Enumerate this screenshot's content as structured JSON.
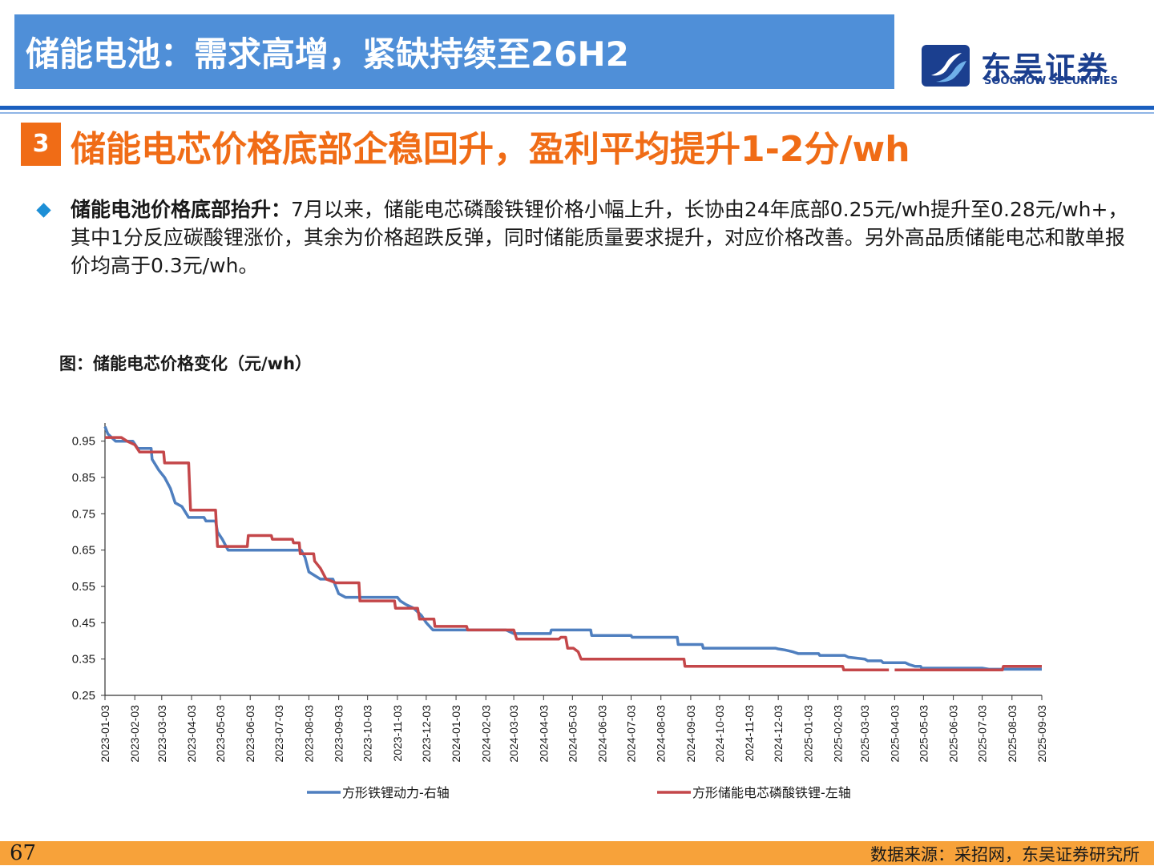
{
  "header": {
    "title": "储能电池：需求高增，紧缺持续至26H2",
    "brand_cn": "东吴证券",
    "brand_en": "SOOCHOW SECURITIES"
  },
  "section": {
    "number": "3",
    "title": "储能电芯价格底部企稳回升，盈利平均提升1-2分/wh"
  },
  "bullet": {
    "lead": "储能电池价格底部抬升：",
    "text": "7月以来，储能电芯磷酸铁锂价格小幅上升，长协由24年底部0.25元/wh提升至0.28元/wh+，其中1分反应碳酸锂涨价，其余为价格超跌反弹，同时储能质量要求提升，对应价格改善。另外高品质储能电芯和散单报价均高于0.3元/wh。"
  },
  "chart_title": "图：储能电芯价格变化（元/wh）",
  "chart_data": {
    "type": "line",
    "title": "图：储能电芯价格变化（元/wh）",
    "xlabel": "",
    "ylabel": "",
    "x_ticks": [
      "2023-01-03",
      "2023-02-03",
      "2023-03-03",
      "2023-04-03",
      "2023-05-03",
      "2023-06-03",
      "2023-07-03",
      "2023-08-03",
      "2023-09-03",
      "2023-10-03",
      "2023-11-03",
      "2023-12-03",
      "2024-01-03",
      "2024-02-03",
      "2024-03-03",
      "2024-04-03",
      "2024-05-03",
      "2024-06-03",
      "2024-07-03",
      "2024-08-03",
      "2024-09-03",
      "2024-10-03",
      "2024-11-03",
      "2024-12-03",
      "2025-01-03",
      "2025-02-03",
      "2025-03-03",
      "2025-04-03",
      "2025-05-03",
      "2025-06-03",
      "2025-07-03",
      "2025-08-03",
      "2025-09-03"
    ],
    "y_ticks": [
      0.25,
      0.35,
      0.45,
      0.55,
      0.65,
      0.75,
      0.85,
      0.95
    ],
    "ylim": [
      0.25,
      1.0
    ],
    "grid": false,
    "legend_position": "bottom",
    "series": [
      {
        "name": "方形铁锂动力-右轴",
        "color": "#4f7fbf",
        "points": [
          [
            "2023-01-03",
            0.99
          ],
          [
            "2023-01-06",
            0.97
          ],
          [
            "2023-01-14",
            0.95
          ],
          [
            "2023-02-01",
            0.95
          ],
          [
            "2023-02-06",
            0.93
          ],
          [
            "2023-02-20",
            0.93
          ],
          [
            "2023-02-21",
            0.9
          ],
          [
            "2023-02-28",
            0.87
          ],
          [
            "2023-03-06",
            0.85
          ],
          [
            "2023-03-12",
            0.82
          ],
          [
            "2023-03-17",
            0.78
          ],
          [
            "2023-03-24",
            0.77
          ],
          [
            "2023-03-31",
            0.74
          ],
          [
            "2023-04-16",
            0.74
          ],
          [
            "2023-04-18",
            0.73
          ],
          [
            "2023-04-28",
            0.73
          ],
          [
            "2023-04-30",
            0.7
          ],
          [
            "2023-05-05",
            0.68
          ],
          [
            "2023-05-11",
            0.65
          ],
          [
            "2023-07-26",
            0.65
          ],
          [
            "2023-07-30",
            0.63
          ],
          [
            "2023-08-03",
            0.59
          ],
          [
            "2023-08-09",
            0.58
          ],
          [
            "2023-08-15",
            0.57
          ],
          [
            "2023-08-28",
            0.57
          ],
          [
            "2023-09-03",
            0.53
          ],
          [
            "2023-09-10",
            0.52
          ],
          [
            "2023-11-03",
            0.52
          ],
          [
            "2023-11-06",
            0.51
          ],
          [
            "2023-11-12",
            0.5
          ],
          [
            "2023-11-20",
            0.49
          ],
          [
            "2023-11-28",
            0.47
          ],
          [
            "2023-12-03",
            0.45
          ],
          [
            "2023-12-10",
            0.43
          ],
          [
            "2024-02-24",
            0.43
          ],
          [
            "2024-03-03",
            0.42
          ],
          [
            "2024-04-10",
            0.42
          ],
          [
            "2024-04-11",
            0.43
          ],
          [
            "2024-05-22",
            0.43
          ],
          [
            "2024-05-23",
            0.415
          ],
          [
            "2024-07-03",
            0.415
          ],
          [
            "2024-07-04",
            0.41
          ],
          [
            "2024-08-20",
            0.41
          ],
          [
            "2024-08-21",
            0.39
          ],
          [
            "2024-09-15",
            0.39
          ],
          [
            "2024-09-16",
            0.38
          ],
          [
            "2024-11-30",
            0.38
          ],
          [
            "2024-12-03",
            0.378
          ],
          [
            "2024-12-10",
            0.375
          ],
          [
            "2024-12-18",
            0.37
          ],
          [
            "2024-12-24",
            0.365
          ],
          [
            "2025-01-14",
            0.365
          ],
          [
            "2025-01-15",
            0.36
          ],
          [
            "2025-02-10",
            0.36
          ],
          [
            "2025-02-14",
            0.355
          ],
          [
            "2025-03-03",
            0.35
          ],
          [
            "2025-03-06",
            0.345
          ],
          [
            "2025-03-20",
            0.345
          ],
          [
            "2025-03-22",
            0.34
          ],
          [
            "2025-04-14",
            0.34
          ],
          [
            "2025-04-18",
            0.335
          ],
          [
            "2025-04-24",
            0.33
          ],
          [
            "2025-04-30",
            0.33
          ],
          [
            "2025-05-01",
            0.325
          ],
          [
            "2025-07-03",
            0.325
          ],
          [
            "2025-07-10",
            0.322
          ],
          [
            "2025-09-03",
            0.322
          ]
        ]
      },
      {
        "name": "方形储能电芯磷酸铁锂-左轴",
        "color": "#c4474a",
        "segments": [
          [
            [
              "2023-01-03",
              0.96
            ],
            [
              "2023-01-20",
              0.96
            ],
            [
              "2023-01-26",
              0.95
            ],
            [
              "2023-02-03",
              0.94
            ],
            [
              "2023-02-08",
              0.92
            ],
            [
              "2023-03-05",
              0.92
            ],
            [
              "2023-03-06",
              0.89
            ],
            [
              "2023-03-31",
              0.89
            ],
            [
              "2023-04-02",
              0.76
            ],
            [
              "2023-04-28",
              0.76
            ],
            [
              "2023-04-30",
              0.66
            ],
            [
              "2023-05-31",
              0.66
            ],
            [
              "2023-06-01",
              0.69
            ],
            [
              "2023-06-25",
              0.69
            ],
            [
              "2023-06-26",
              0.68
            ],
            [
              "2023-07-17",
              0.68
            ],
            [
              "2023-07-18",
              0.67
            ],
            [
              "2023-07-24",
              0.67
            ],
            [
              "2023-07-25",
              0.64
            ],
            [
              "2023-08-08",
              0.64
            ],
            [
              "2023-08-09",
              0.62
            ],
            [
              "2023-08-15",
              0.6
            ],
            [
              "2023-08-21",
              0.57
            ],
            [
              "2023-08-31",
              0.56
            ],
            [
              "2023-09-24",
              0.56
            ],
            [
              "2023-09-25",
              0.51
            ],
            [
              "2023-10-31",
              0.51
            ],
            [
              "2023-11-01",
              0.49
            ],
            [
              "2023-11-24",
              0.49
            ],
            [
              "2023-11-26",
              0.46
            ],
            [
              "2023-12-11",
              0.46
            ],
            [
              "2023-12-12",
              0.44
            ],
            [
              "2024-01-14",
              0.44
            ],
            [
              "2024-01-15",
              0.43
            ],
            [
              "2024-03-03",
              0.43
            ],
            [
              "2024-03-06",
              0.405
            ],
            [
              "2024-04-19",
              0.405
            ],
            [
              "2024-04-21",
              0.41
            ],
            [
              "2024-04-26",
              0.41
            ],
            [
              "2024-04-28",
              0.38
            ],
            [
              "2024-05-04",
              0.38
            ],
            [
              "2024-05-09",
              0.37
            ],
            [
              "2024-05-12",
              0.35
            ],
            [
              "2024-08-27",
              0.35
            ],
            [
              "2024-08-28",
              0.33
            ],
            [
              "2025-02-08",
              0.33
            ],
            [
              "2025-02-09",
              0.32
            ],
            [
              "2025-03-28",
              0.32
            ]
          ],
          [
            [
              "2025-04-03",
              0.32
            ],
            [
              "2025-07-24",
              0.32
            ],
            [
              "2025-07-25",
              0.33
            ],
            [
              "2025-09-03",
              0.33
            ]
          ]
        ]
      }
    ]
  },
  "footer": {
    "page_number": "67",
    "source": "数据来源：采招网，东吴证券研究所"
  }
}
